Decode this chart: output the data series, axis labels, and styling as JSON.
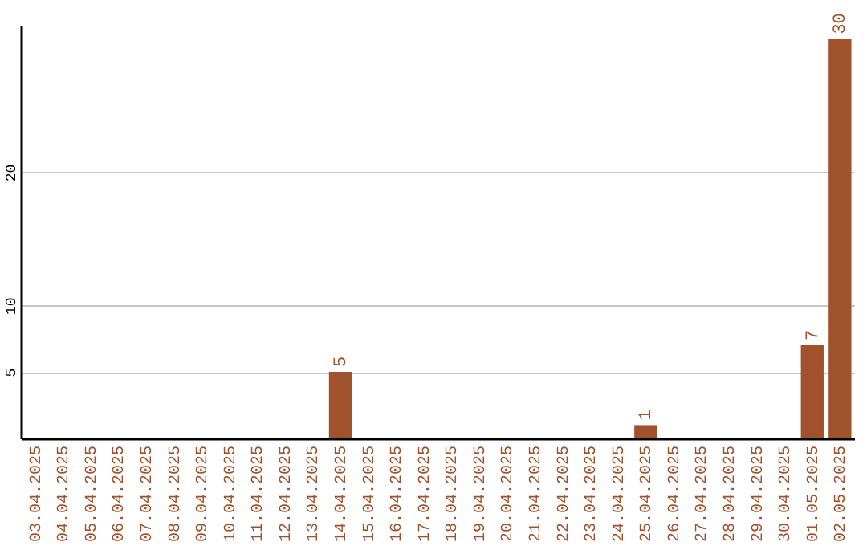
{
  "chart_data": {
    "type": "bar",
    "categories": [
      "03.04.2025",
      "04.04.2025",
      "05.04.2025",
      "06.04.2025",
      "07.04.2025",
      "08.04.2025",
      "09.04.2025",
      "10.04.2025",
      "11.04.2025",
      "12.04.2025",
      "13.04.2025",
      "14.04.2025",
      "15.04.2025",
      "16.04.2025",
      "17.04.2025",
      "18.04.2025",
      "19.04.2025",
      "20.04.2025",
      "21.04.2025",
      "22.04.2025",
      "23.04.2025",
      "24.04.2025",
      "25.04.2025",
      "26.04.2025",
      "27.04.2025",
      "28.04.2025",
      "29.04.2025",
      "30.04.2025",
      "01.05.2025",
      "02.05.2025"
    ],
    "values": [
      0,
      0,
      0,
      0,
      0,
      0,
      0,
      0,
      0,
      0,
      0,
      5,
      0,
      0,
      0,
      0,
      0,
      0,
      0,
      0,
      0,
      0,
      1,
      0,
      0,
      0,
      0,
      0,
      7,
      30
    ],
    "value_labels": [
      null,
      null,
      null,
      null,
      null,
      null,
      null,
      null,
      null,
      null,
      null,
      "5",
      null,
      null,
      null,
      null,
      null,
      null,
      null,
      null,
      null,
      null,
      "1",
      null,
      null,
      null,
      null,
      null,
      "7",
      "30"
    ],
    "color": "#a0522d",
    "ylim": [
      0,
      31
    ],
    "yticks": [
      5,
      10,
      20
    ],
    "grid": "y"
  }
}
